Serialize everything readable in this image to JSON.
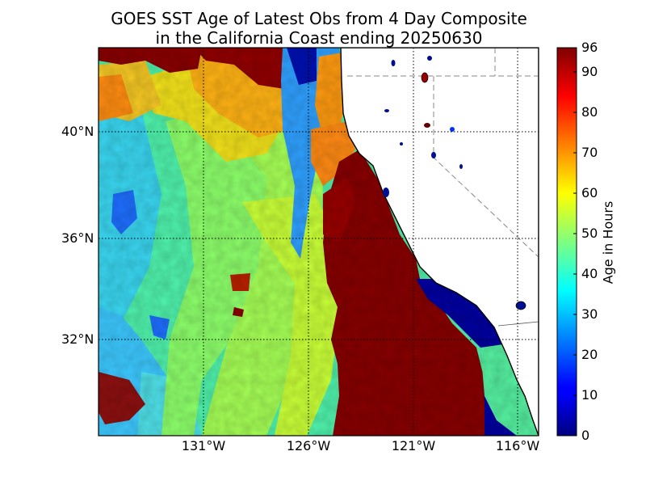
{
  "title_line1": "GOES SST Age of Latest Obs from 4 Day Composite",
  "title_line2": "in the California Coast ending 20250630",
  "longitude_labels": [
    "131°W",
    "126°W",
    "121°W",
    "116°W"
  ],
  "latitude_labels": [
    "40°N",
    "36°N",
    "32°N"
  ],
  "colorbar": {
    "label": "Age in Hours",
    "ticks": [
      "0",
      "10",
      "20",
      "30",
      "40",
      "50",
      "60",
      "70",
      "80",
      "90",
      "96"
    ],
    "min": 0,
    "max": 96,
    "colormap": "jet"
  },
  "colors": {
    "land": "#ffffff",
    "gridline": "#000000",
    "state_border": "#888888",
    "frame": "#000000"
  }
}
